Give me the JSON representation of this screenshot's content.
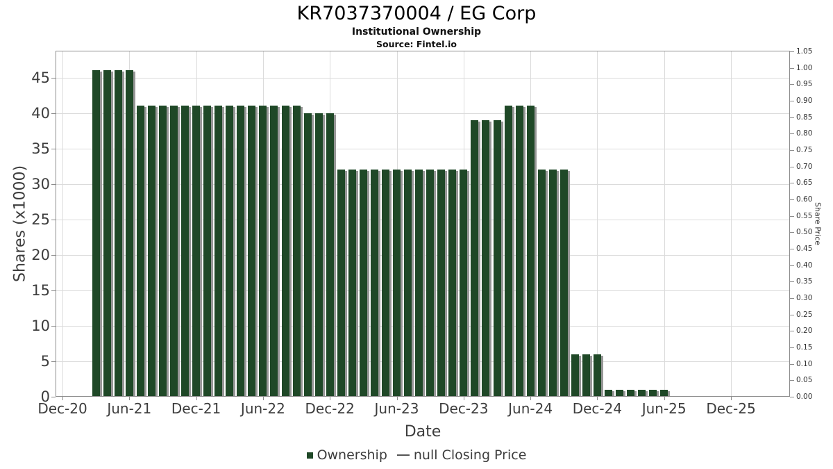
{
  "header": {
    "title": "KR7037370004 / EG Corp",
    "subtitle": "Institutional Ownership",
    "source": "Source: Fintel.io"
  },
  "axes": {
    "x_label": "Date",
    "y_left_label": "Shares (x1000)",
    "y_right_label": "Share Price"
  },
  "legend": {
    "items": [
      {
        "marker": "square",
        "color": "#1f4827",
        "label": "Ownership"
      },
      {
        "marker": "line",
        "color": "#555555",
        "label": "null Closing Price"
      }
    ]
  },
  "colors": {
    "bar": "#1f4827",
    "bar_shadow": "#979797",
    "grid": "#dbdbdb",
    "axis": "#8c8c8c",
    "text": "#3d3d3d"
  },
  "chart_data": {
    "type": "bar",
    "title": "KR7037370004 / EG Corp",
    "subtitle": "Institutional Ownership",
    "source": "Source: Fintel.io",
    "xlabel": "Date",
    "ylabel": "Shares (x1000)",
    "ylabel_right": "Share Price",
    "grid": true,
    "legend_position": "bottom",
    "categories": [
      "Mar-21",
      "Apr-21",
      "May-21",
      "Jun-21",
      "Jul-21",
      "Aug-21",
      "Sep-21",
      "Oct-21",
      "Nov-21",
      "Dec-21",
      "Jan-22",
      "Feb-22",
      "Mar-22",
      "Apr-22",
      "May-22",
      "Jun-22",
      "Jul-22",
      "Aug-22",
      "Sep-22",
      "Oct-22",
      "Nov-22",
      "Dec-22",
      "Jan-23",
      "Feb-23",
      "Mar-23",
      "Apr-23",
      "May-23",
      "Jun-23",
      "Jul-23",
      "Aug-23",
      "Sep-23",
      "Oct-23",
      "Nov-23",
      "Dec-23",
      "Jan-24",
      "Feb-24",
      "Mar-24",
      "Apr-24",
      "May-24",
      "Jun-24",
      "Jul-24",
      "Aug-24",
      "Sep-24",
      "Oct-24",
      "Nov-24",
      "Dec-24",
      "Jan-25",
      "Feb-25",
      "Mar-25",
      "Apr-25",
      "May-25",
      "Jun-25"
    ],
    "series": [
      {
        "name": "Ownership",
        "values": [
          46,
          46,
          46,
          46,
          41,
          41,
          41,
          41,
          41,
          41,
          41,
          41,
          41,
          41,
          41,
          41,
          41,
          41,
          41,
          40,
          40,
          40,
          32,
          32,
          32,
          32,
          32,
          32,
          32,
          32,
          32,
          32,
          32,
          32,
          39,
          39,
          39,
          41,
          41,
          41,
          32,
          32,
          32,
          6,
          6,
          6,
          1,
          1,
          1,
          1,
          1,
          1
        ]
      },
      {
        "name": "null Closing Price",
        "values": []
      }
    ],
    "x_ticks": [
      "Dec-20",
      "Jun-21",
      "Dec-21",
      "Jun-22",
      "Dec-22",
      "Jun-23",
      "Dec-23",
      "Jun-24",
      "Dec-24",
      "Jun-25",
      "Dec-25"
    ],
    "y_ticks_left": [
      0,
      5,
      10,
      15,
      20,
      25,
      30,
      35,
      40,
      45
    ],
    "y_ticks_right": [
      "0.00",
      "0.05",
      "0.10",
      "0.15",
      "0.20",
      "0.25",
      "0.30",
      "0.35",
      "0.40",
      "0.45",
      "0.50",
      "0.55",
      "0.60",
      "0.65",
      "0.70",
      "0.75",
      "0.80",
      "0.85",
      "0.90",
      "0.95",
      "1.00",
      "1.05"
    ],
    "ylim_left": [
      0,
      48.8
    ],
    "ylim_right": [
      0,
      1.05
    ]
  }
}
